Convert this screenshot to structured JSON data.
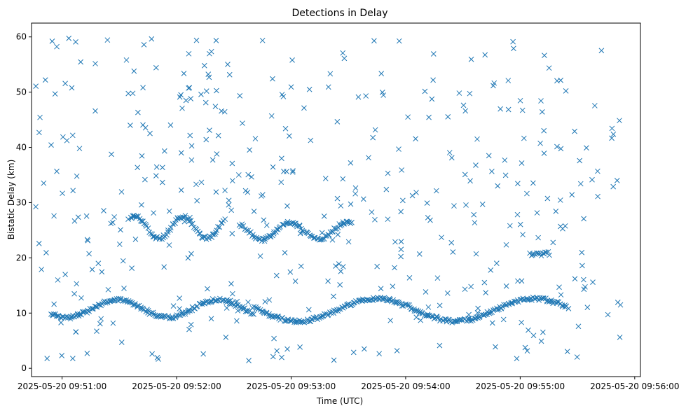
{
  "chart_data": {
    "type": "scatter",
    "title": "Detections in Delay",
    "xlabel": "Time (UTC)",
    "ylabel": "Bistatic Delay (km)",
    "marker": "x",
    "color": "#1f77b4",
    "grid": false,
    "xlim": [
      "2025-05-20 09:50:44",
      "2025-05-20 09:56:03"
    ],
    "ylim": [
      -1.5,
      62.5
    ],
    "xticks": [
      {
        "label": "2025-05-20 09:51:00",
        "t": 60
      },
      {
        "label": "2025-05-20 09:52:00",
        "t": 120
      },
      {
        "label": "2025-05-20 09:53:00",
        "t": 180
      },
      {
        "label": "2025-05-20 09:54:00",
        "t": 240
      },
      {
        "label": "2025-05-20 09:55:00",
        "t": 300
      },
      {
        "label": "2025-05-20 09:56:00",
        "t": 360
      }
    ],
    "x_unit_note": "t = seconds after 2025-05-20 09:50:00 UTC",
    "yticks": [
      0,
      10,
      20,
      30,
      40,
      50,
      60
    ],
    "series": [
      {
        "name": "detections",
        "t_range": [
          46,
          354
        ],
        "delay_range": [
          1.2,
          59.8
        ],
        "approx_count": 780,
        "track_segments": [
          {
            "t": [
              54,
              160
            ],
            "delay": [
              9.2,
              12.4
            ]
          },
          {
            "t": [
              160,
              325
            ],
            "delay": [
              8.5,
              12.6
            ]
          },
          {
            "t": [
              95,
              145
            ],
            "delay": [
              23.5,
              27.5
            ]
          },
          {
            "t": [
              153,
              212
            ],
            "delay": [
              23.3,
              26.4
            ]
          },
          {
            "t": [
              305,
              315
            ],
            "delay": [
              20.5,
              20.9
            ]
          }
        ]
      }
    ]
  }
}
